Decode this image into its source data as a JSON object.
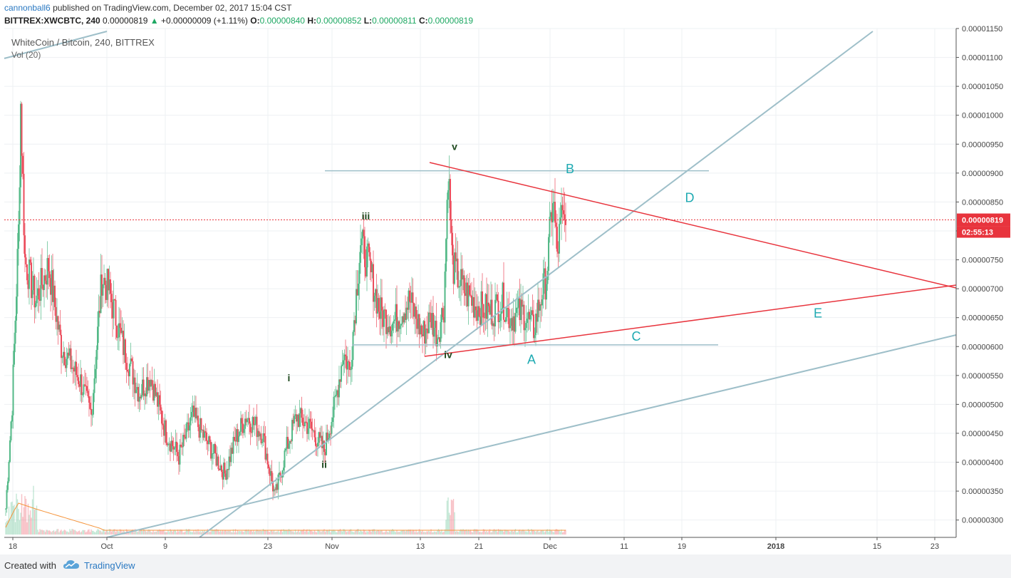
{
  "header": {
    "author": "cannonball6",
    "published_text": "published on TradingView.com, December 02, 2017 15:04 CST",
    "symbol": "BITTREX:XWCBTC, 240",
    "last": "0.00000819",
    "change": "+0.00000009 (+1.11%)",
    "o_label": "O:",
    "o_value": "0.00000840",
    "h_label": "H:",
    "h_value": "0.00000852",
    "l_label": "L:",
    "l_value": "0.00000811",
    "c_label": "C:",
    "c_value": "0.00000819"
  },
  "legend": {
    "title": "WhiteCoin / Bitcoin, 240, BITTREX",
    "volume": "Vol (20)"
  },
  "footer": {
    "created_with": "Created with",
    "brand": "TradingView",
    "icon": "tradingview-cloud-icon"
  },
  "colors": {
    "up": "#53b987",
    "down": "#eb4d5c",
    "trendline": "#9ebfc9",
    "redline": "#e8343d",
    "wave_label": "#1f4a1f",
    "abcde_label": "#1eaab2"
  },
  "chart_data": {
    "type": "candlestick",
    "interval": "240",
    "ylim": [
      2.7e-06,
      1.15e-05
    ],
    "y_ticks": [
      "0.00000300",
      "0.00000350",
      "0.00000400",
      "0.00000450",
      "0.00000500",
      "0.00000550",
      "0.00000600",
      "0.00000650",
      "0.00000700",
      "0.00000750",
      "0.00000800",
      "0.00000850",
      "0.00000900",
      "0.00000950",
      "0.00001000",
      "0.00001050",
      "0.00001100",
      "0.00001150"
    ],
    "x_ticks": [
      "18",
      "Oct",
      "9",
      "23",
      "Nov",
      "13",
      "21",
      "Dec",
      "11",
      "19",
      "2018",
      "15",
      "23"
    ],
    "last_price_label": "0.00000819",
    "countdown_label": "02:55:13",
    "anchor_closes": [
      [
        0,
        3.2e-06
      ],
      [
        6,
        5e-06
      ],
      [
        12,
        8e-06
      ],
      [
        14,
        1.02e-05
      ],
      [
        18,
        7.5e-06
      ],
      [
        28,
        6.8e-06
      ],
      [
        40,
        7.4e-06
      ],
      [
        52,
        6e-06
      ],
      [
        70,
        5.4e-06
      ],
      [
        80,
        4.8e-06
      ],
      [
        90,
        7.2e-06
      ],
      [
        96,
        7e-06
      ],
      [
        110,
        6e-06
      ],
      [
        125,
        5.2e-06
      ],
      [
        135,
        5.5e-06
      ],
      [
        150,
        4.5e-06
      ],
      [
        162,
        4.1e-06
      ],
      [
        175,
        4.8e-06
      ],
      [
        190,
        4.3e-06
      ],
      [
        205,
        3.8e-06
      ],
      [
        215,
        4.4e-06
      ],
      [
        225,
        4.8e-06
      ],
      [
        240,
        4.5e-06
      ],
      [
        252,
        3.4e-06
      ],
      [
        262,
        4.2e-06
      ],
      [
        272,
        4.8e-06
      ],
      [
        285,
        4.6e-06
      ],
      [
        298,
        4.2e-06
      ],
      [
        308,
        5e-06
      ],
      [
        316,
        5.9e-06
      ],
      [
        322,
        5.6e-06
      ],
      [
        332,
        7.8e-06
      ],
      [
        340,
        7.4e-06
      ],
      [
        350,
        6.6e-06
      ],
      [
        362,
        6.4e-06
      ],
      [
        378,
        6.8e-06
      ],
      [
        390,
        6.2e-06
      ],
      [
        398,
        6.5e-06
      ],
      [
        404,
        6.2e-06
      ],
      [
        410,
        6.7e-06
      ],
      [
        414,
        9.1e-06
      ],
      [
        418,
        7.4e-06
      ],
      [
        428,
        7e-06
      ],
      [
        440,
        6.7e-06
      ],
      [
        455,
        6.6e-06
      ],
      [
        465,
        6.8e-06
      ],
      [
        472,
        6.5e-06
      ],
      [
        484,
        6.6e-06
      ],
      [
        494,
        6.3e-06
      ],
      [
        500,
        6.8e-06
      ],
      [
        506,
        7.2e-06
      ],
      [
        512,
        8.6e-06
      ],
      [
        516,
        7.6e-06
      ],
      [
        520,
        8.2e-06
      ],
      [
        524,
        8.1e-06
      ]
    ],
    "wave_labels": [
      {
        "text": "i",
        "time": 265,
        "price": 5.4e-06
      },
      {
        "text": "ii",
        "time": 298,
        "price": 3.9e-06
      },
      {
        "text": "iii",
        "time": 337,
        "price": 8.2e-06
      },
      {
        "text": "iv",
        "time": 414,
        "price": 5.8e-06
      },
      {
        "text": "v",
        "time": 420,
        "price": 9.4e-06
      }
    ],
    "pattern_labels": [
      {
        "text": "A",
        "time": 492,
        "price": 5.7e-06
      },
      {
        "text": "B",
        "time": 528,
        "price": 9e-06
      },
      {
        "text": "C",
        "time": 590,
        "price": 6.1e-06
      },
      {
        "text": "D",
        "time": 640,
        "price": 8.5e-06
      },
      {
        "text": "E",
        "time": 760,
        "price": 6.5e-06
      }
    ]
  }
}
